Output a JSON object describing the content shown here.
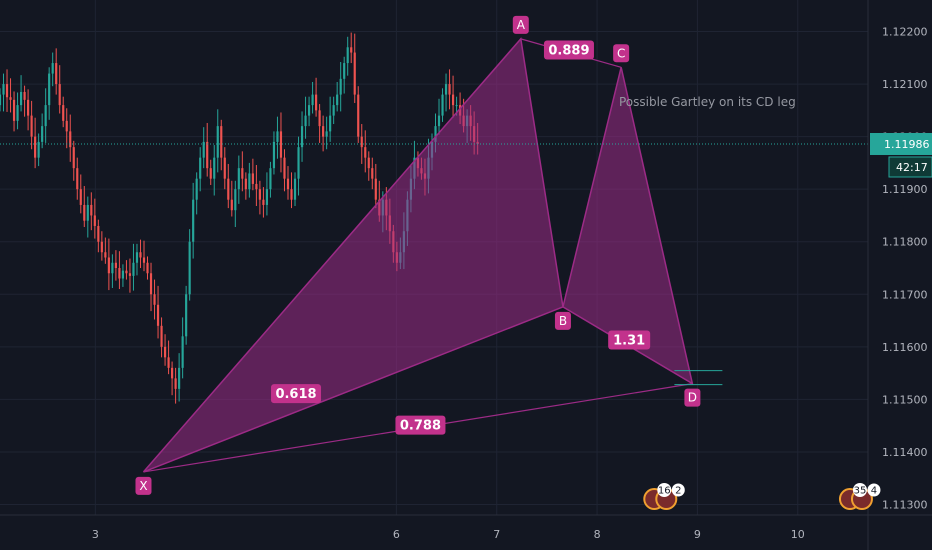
{
  "chart_data": {
    "type": "candlestick",
    "title": "",
    "y_axis": {
      "ticks": [
        "1.12200",
        "1.12100",
        "1.12000",
        "1.11900",
        "1.11800",
        "1.11700",
        "1.11600",
        "1.11500",
        "1.11400",
        "1.11300"
      ],
      "range": [
        1.1128,
        1.1226
      ]
    },
    "x_axis": {
      "ticks": [
        {
          "label": "3",
          "day": 3
        },
        {
          "label": "6",
          "day": 6
        },
        {
          "label": "7",
          "day": 7
        },
        {
          "label": "8",
          "day": 8
        },
        {
          "label": "9",
          "day": 9
        },
        {
          "label": "10",
          "day": 10
        }
      ],
      "range": [
        2.05,
        10.7
      ]
    },
    "current_price": {
      "value": 1.11986,
      "label": "1.11986",
      "countdown": "42:17"
    },
    "pattern": {
      "name": "Gartley",
      "points": [
        {
          "label": "X",
          "day": 3.48,
          "price": 1.11362
        },
        {
          "label": "A",
          "day": 7.24,
          "price": 1.12186
        },
        {
          "label": "B",
          "day": 7.66,
          "price": 1.11676
        },
        {
          "label": "C",
          "day": 8.24,
          "price": 1.12132
        },
        {
          "label": "D",
          "day": 8.95,
          "price": 1.1153
        }
      ],
      "ratios": [
        {
          "label": "0.618",
          "day": 5.0,
          "price": 1.1151
        },
        {
          "label": "0.889",
          "day": 7.72,
          "price": 1.12164
        },
        {
          "label": "1.31",
          "day": 8.32,
          "price": 1.11612
        },
        {
          "label": "0.788",
          "day": 6.24,
          "price": 1.1145
        }
      ],
      "note": "Possible Gartley on its CD leg"
    },
    "event_badges": [
      {
        "day": 8.65,
        "count_a": "16",
        "count_b": "2"
      },
      {
        "day": 10.6,
        "count_a": "35",
        "count_b": "4"
      }
    ],
    "grid": true,
    "colors": {
      "background": "#131722",
      "grid": "#1f2433",
      "up": "#26a69a",
      "down": "#ef5350",
      "pattern": "#9c2b86",
      "pattern_fill": "#9c2b86",
      "label_bg": "#c2328c",
      "price_line": "#26a69a",
      "axis_text": "#b2b5be"
    },
    "candles": {
      "base_day": 2.05,
      "step": 0.035,
      "close": [
        1.1208,
        1.121,
        1.12075,
        1.1207,
        1.1203,
        1.1206,
        1.12085,
        1.1207,
        1.1204,
        1.12,
        1.1196,
        1.1199,
        1.1202,
        1.1206,
        1.1212,
        1.1214,
        1.121,
        1.1206,
        1.1203,
        1.1201,
        1.1198,
        1.1194,
        1.119,
        1.1187,
        1.1184,
        1.1187,
        1.1185,
        1.1183,
        1.118,
        1.1178,
        1.1177,
        1.1174,
        1.1176,
        1.1175,
        1.1173,
        1.11745,
        1.1174,
        1.11735,
        1.1176,
        1.1178,
        1.1177,
        1.1176,
        1.1174,
        1.117,
        1.1168,
        1.1164,
        1.116,
        1.1158,
        1.1156,
        1.1154,
        1.1152,
        1.1156,
        1.1162,
        1.117,
        1.118,
        1.1188,
        1.1192,
        1.1196,
        1.1199,
        1.1194,
        1.1192,
        1.1196,
        1.1202,
        1.1196,
        1.1192,
        1.1188,
        1.1186,
        1.119,
        1.1194,
        1.1192,
        1.119,
        1.1193,
        1.1191,
        1.119,
        1.1188,
        1.1187,
        1.119,
        1.1194,
        1.1199,
        1.1201,
        1.1196,
        1.1192,
        1.119,
        1.1188,
        1.1192,
        1.1198,
        1.1202,
        1.1204,
        1.1206,
        1.1208,
        1.1205,
        1.1202,
        1.12,
        1.1201,
        1.1204,
        1.1206,
        1.1208,
        1.1211,
        1.1214,
        1.1217,
        1.1216,
        1.1208,
        1.12,
        1.1198,
        1.1196,
        1.1194,
        1.1192,
        1.1188,
        1.1185,
        1.1188,
        1.1185,
        1.1182,
        1.1178,
        1.1176,
        1.1178,
        1.1182,
        1.1188,
        1.1192,
        1.1196,
        1.1194,
        1.1193,
        1.1192,
        1.1196,
        1.1199,
        1.1202,
        1.1204,
        1.1208,
        1.121,
        1.1208,
        1.1206,
        1.1206,
        1.1204,
        1.1202,
        1.1204,
        1.1202,
        1.1199,
        1.11986
      ]
    }
  }
}
